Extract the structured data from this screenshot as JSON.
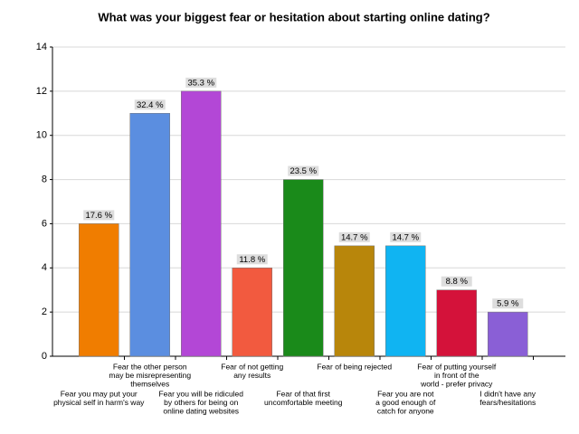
{
  "chart_data": {
    "type": "bar",
    "title": "What was your biggest fear or hesitation about starting online dating?",
    "categories": [
      [
        "Fear you may put your",
        "physical self in harm's way"
      ],
      [
        "Fear the other person",
        "may be misrepresenting",
        "themselves"
      ],
      [
        "Fear you will be ridiculed",
        "by others for being on",
        "online dating websites"
      ],
      [
        "Fear of not getting",
        "any results"
      ],
      [
        "Fear of that first",
        "uncomfortable meeting"
      ],
      [
        "Fear of being rejected"
      ],
      [
        "Fear you are not",
        "a good enough of",
        "catch for anyone"
      ],
      [
        "Fear of putting yourself",
        "in front of the",
        "world - prefer privacy"
      ],
      [
        "I didn't have any",
        "fears/hesitations"
      ]
    ],
    "values": [
      6,
      11,
      12,
      4,
      8,
      5,
      5,
      3,
      2
    ],
    "value_labels": [
      "17.6 %",
      "32.4 %",
      "35.3 %",
      "11.8 %",
      "23.5 %",
      "14.7 %",
      "14.7 %",
      "8.8 %",
      "5.9 %"
    ],
    "colors": [
      "#f07d00",
      "#5b8ee0",
      "#b347d6",
      "#f25a3f",
      "#1a8a1a",
      "#b8860b",
      "#10b4f2",
      "#d4123a",
      "#8a5fd6"
    ],
    "ylim": [
      0,
      14
    ],
    "yticks": [
      0,
      2,
      4,
      6,
      8,
      10,
      12,
      14
    ],
    "grid": true
  }
}
